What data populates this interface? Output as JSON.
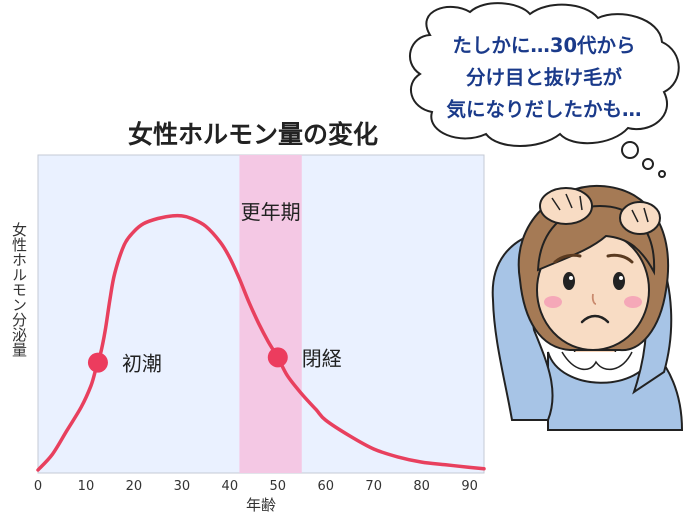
{
  "chart_data": {
    "type": "line",
    "title": "女性ホルモン量の変化",
    "xlabel": "年齢",
    "ylabel": "女性ホルモン分泌量",
    "xlim": [
      0,
      93
    ],
    "ylim": [
      0,
      100
    ],
    "x_ticks": [
      "0",
      "10",
      "20",
      "30",
      "40",
      "50",
      "60",
      "70",
      "80",
      "90"
    ],
    "y_ticks_shown": false,
    "grid": false,
    "series": [
      {
        "x": [
          0,
          3,
          6,
          9,
          11,
          12,
          13,
          14,
          15,
          16,
          18,
          20,
          22,
          25,
          28,
          30,
          32,
          35,
          38,
          40,
          42,
          44,
          46,
          48,
          50,
          52,
          55,
          58,
          60,
          65,
          70,
          75,
          80,
          85,
          90,
          93
        ],
        "y": [
          0,
          6,
          15,
          24,
          32,
          38,
          44,
          53,
          65,
          75,
          86,
          91,
          94,
          96,
          97,
          97,
          96,
          93,
          87,
          81,
          73,
          64,
          56,
          49,
          43,
          36,
          29,
          23,
          19,
          13,
          8,
          5,
          3,
          2,
          1,
          0.5
        ]
      }
    ],
    "annotations": [
      {
        "label": "初潮",
        "x": 12.5,
        "y": 41
      },
      {
        "label": "閉経",
        "x": 50,
        "y": 43
      }
    ],
    "shaded_band": {
      "label": "更年期",
      "x_range": [
        42,
        55
      ],
      "color": "#f4c8e4"
    },
    "colors": {
      "line": "#e8405e",
      "marker": "#ec3c5e",
      "plot_bg": "#eaf1ff",
      "band": "#f4c8e4"
    }
  },
  "bubble": {
    "lines": [
      "たしかに…30代から",
      "分け目と抜け毛が",
      "気になりだしたかも…"
    ]
  },
  "illustration": {
    "icon": "worried-woman-icon"
  }
}
